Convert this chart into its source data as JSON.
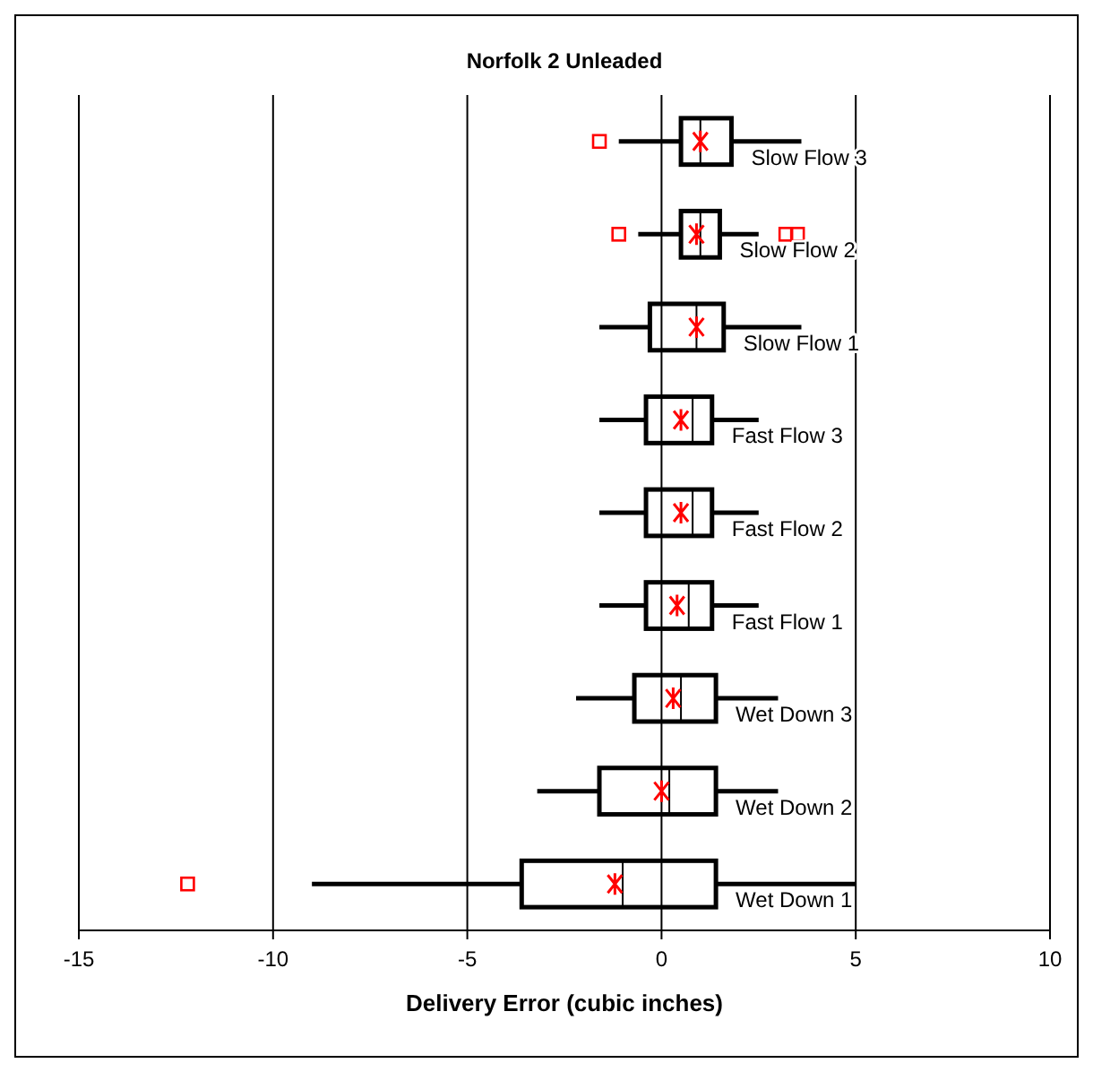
{
  "chart_data": {
    "type": "box",
    "orientation": "horizontal",
    "title": "Norfolk 2 Unleaded",
    "xlabel": "Delivery Error (cubic inches)",
    "categories": [
      "Slow Flow 3",
      "Slow Flow 2",
      "Slow Flow 1",
      "Fast Flow 3",
      "Fast Flow 2",
      "Fast Flow 1",
      "Wet Down 3",
      "Wet Down 2",
      "Wet Down 1"
    ],
    "boxes": [
      {
        "low": -1.1,
        "q1": 0.5,
        "median": 1.0,
        "q3": 1.8,
        "high": 3.6,
        "mean": 1.0,
        "outliers": [
          -1.6
        ]
      },
      {
        "low": -0.6,
        "q1": 0.5,
        "median": 1.0,
        "q3": 1.5,
        "high": 2.5,
        "mean": 0.9,
        "outliers": [
          -1.1,
          3.2,
          3.5
        ]
      },
      {
        "low": -1.6,
        "q1": -0.3,
        "median": 0.9,
        "q3": 1.6,
        "high": 3.6,
        "mean": 0.9
      },
      {
        "low": -1.6,
        "q1": -0.4,
        "median": 0.8,
        "q3": 1.3,
        "high": 2.5,
        "mean": 0.5
      },
      {
        "low": -1.6,
        "q1": -0.4,
        "median": 0.8,
        "q3": 1.3,
        "high": 2.5,
        "mean": 0.5
      },
      {
        "low": -1.6,
        "q1": -0.4,
        "median": 0.7,
        "q3": 1.3,
        "high": 2.5,
        "mean": 0.4
      },
      {
        "low": -2.2,
        "q1": -0.7,
        "median": 0.5,
        "q3": 1.4,
        "high": 3.0,
        "mean": 0.3
      },
      {
        "low": -3.2,
        "q1": -1.6,
        "median": 0.2,
        "q3": 1.4,
        "high": 3.0,
        "mean": 0.0
      },
      {
        "low": -9.0,
        "q1": -3.6,
        "median": -1.0,
        "q3": 1.4,
        "high": 5.0,
        "mean": -1.2,
        "outliers": [
          -12.2
        ]
      }
    ],
    "color": "#000000",
    "xlim": [
      -15,
      10
    ],
    "xticks": [
      -15,
      -10,
      -5,
      0,
      5,
      10
    ],
    "grid": "x"
  }
}
